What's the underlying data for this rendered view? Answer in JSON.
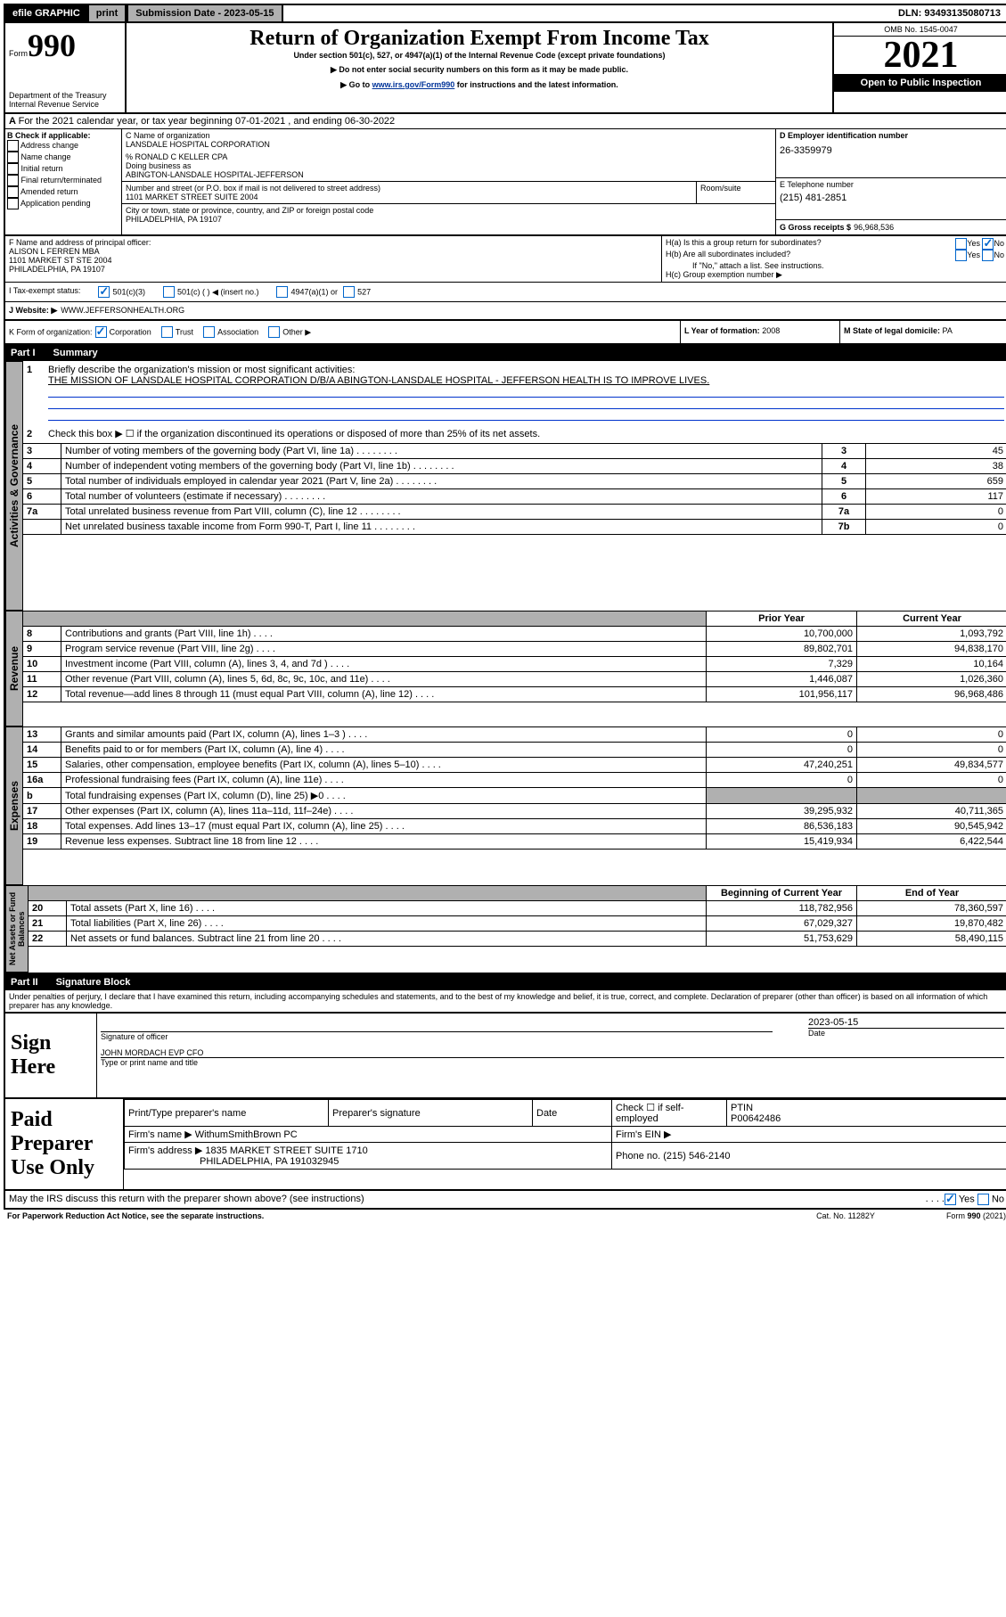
{
  "top": {
    "efile": "efile GRAPHIC",
    "print": "print",
    "sub_date_label": "Submission Date - 2023-05-15",
    "dln": "DLN: 93493135080713"
  },
  "header": {
    "form_prefix": "Form",
    "form_number": "990",
    "title": "Return of Organization Exempt From Income Tax",
    "subtitle": "Under section 501(c), 527, or 4947(a)(1) of the Internal Revenue Code (except private foundations)",
    "note1": "▶ Do not enter social security numbers on this form as it may be made public.",
    "note2_prefix": "▶ Go to ",
    "note2_link": "www.irs.gov/Form990",
    "note2_suffix": " for instructions and the latest information.",
    "dept1": "Department of the Treasury",
    "dept2": "Internal Revenue Service",
    "omb": "OMB No. 1545-0047",
    "year": "2021",
    "open": "Open to Public Inspection"
  },
  "a_line": "For the 2021 calendar year, or tax year beginning 07-01-2021    , and ending 06-30-2022",
  "b": {
    "label": "B Check if applicable:",
    "addr": "Address change",
    "name": "Name change",
    "init": "Initial return",
    "final": "Final return/terminated",
    "amend": "Amended return",
    "app": "Application pending"
  },
  "c": {
    "name_label": "C Name of organization",
    "name": "LANSDALE HOSPITAL CORPORATION",
    "care_of": "% RONALD C KELLER CPA",
    "dba_label": "Doing business as",
    "dba": "ABINGTON-LANSDALE HOSPITAL-JEFFERSON",
    "street_label": "Number and street (or P.O. box if mail is not delivered to street address)",
    "room_label": "Room/suite",
    "street": "1101 MARKET STREET SUITE 2004",
    "city_label": "City or town, state or province, country, and ZIP or foreign postal code",
    "city": "PHILADELPHIA, PA  19107"
  },
  "d": {
    "label": "D Employer identification number",
    "value": "26-3359979"
  },
  "e": {
    "label": "E Telephone number",
    "value": "(215) 481-2851"
  },
  "g": {
    "label": "G Gross receipts $",
    "value": "96,968,536"
  },
  "f": {
    "label": "F  Name and address of principal officer:",
    "name": "ALISON L FERREN MBA",
    "addr1": "1101 MARKET ST STE 2004",
    "addr2": "PHILADELPHIA, PA  19107"
  },
  "h": {
    "a": "H(a)  Is this a group return for subordinates?",
    "b": "H(b)  Are all subordinates included?",
    "b_note": "If \"No,\" attach a list. See instructions.",
    "c": "H(c)  Group exemption number ▶",
    "yes": "Yes",
    "no": "No"
  },
  "i": {
    "label": "I   Tax-exempt status:",
    "c3": "501(c)(3)",
    "c": "501(c) (  ) ◀ (insert no.)",
    "a1": "4947(a)(1) or",
    "s527": "527"
  },
  "j": {
    "label": "J   Website: ▶",
    "value": "WWW.JEFFERSONHEALTH.ORG"
  },
  "k": {
    "label": "K Form of organization:",
    "corp": "Corporation",
    "trust": "Trust",
    "assoc": "Association",
    "other": "Other ▶"
  },
  "l": {
    "label": "L Year of formation:",
    "value": "2008"
  },
  "m": {
    "label": "M State of legal domicile:",
    "value": "PA"
  },
  "part1": {
    "label": "Part I",
    "title": "Summary",
    "q1_label": "1",
    "q1": "Briefly describe the organization's mission or most significant activities:",
    "q1_text": "THE MISSION OF LANSDALE HOSPITAL CORPORATION D/B/A ABINGTON-LANSDALE HOSPITAL - JEFFERSON HEALTH IS TO IMPROVE LIVES.",
    "q2_label": "2",
    "q2": "Check this box ▶ ☐ if the organization discontinued its operations or disposed of more than 25% of its net assets.",
    "sect_ag": "Activities & Governance",
    "sect_rev": "Revenue",
    "sect_exp": "Expenses",
    "sect_na": "Net Assets or Fund Balances",
    "rows_ag": [
      {
        "n": "3",
        "t": "Number of voting members of the governing body (Part VI, line 1a)",
        "box": "3",
        "v": "45"
      },
      {
        "n": "4",
        "t": "Number of independent voting members of the governing body (Part VI, line 1b)",
        "box": "4",
        "v": "38"
      },
      {
        "n": "5",
        "t": "Total number of individuals employed in calendar year 2021 (Part V, line 2a)",
        "box": "5",
        "v": "659"
      },
      {
        "n": "6",
        "t": "Total number of volunteers (estimate if necessary)",
        "box": "6",
        "v": "117"
      },
      {
        "n": "7a",
        "t": "Total unrelated business revenue from Part VIII, column (C), line 12",
        "box": "7a",
        "v": "0"
      },
      {
        "n": "",
        "t": "Net unrelated business taxable income from Form 990-T, Part I, line 11",
        "box": "7b",
        "v": "0"
      }
    ],
    "prior": "Prior Year",
    "current": "Current Year",
    "rows_rev": [
      {
        "n": "8",
        "t": "Contributions and grants (Part VIII, line 1h)",
        "p": "10,700,000",
        "c": "1,093,792"
      },
      {
        "n": "9",
        "t": "Program service revenue (Part VIII, line 2g)",
        "p": "89,802,701",
        "c": "94,838,170"
      },
      {
        "n": "10",
        "t": "Investment income (Part VIII, column (A), lines 3, 4, and 7d )",
        "p": "7,329",
        "c": "10,164"
      },
      {
        "n": "11",
        "t": "Other revenue (Part VIII, column (A), lines 5, 6d, 8c, 9c, 10c, and 11e)",
        "p": "1,446,087",
        "c": "1,026,360"
      },
      {
        "n": "12",
        "t": "Total revenue—add lines 8 through 11 (must equal Part VIII, column (A), line 12)",
        "p": "101,956,117",
        "c": "96,968,486"
      }
    ],
    "rows_exp": [
      {
        "n": "13",
        "t": "Grants and similar amounts paid (Part IX, column (A), lines 1–3 )",
        "p": "0",
        "c": "0"
      },
      {
        "n": "14",
        "t": "Benefits paid to or for members (Part IX, column (A), line 4)",
        "p": "0",
        "c": "0"
      },
      {
        "n": "15",
        "t": "Salaries, other compensation, employee benefits (Part IX, column (A), lines 5–10)",
        "p": "47,240,251",
        "c": "49,834,577"
      },
      {
        "n": "16a",
        "t": "Professional fundraising fees (Part IX, column (A), line 11e)",
        "p": "0",
        "c": "0"
      },
      {
        "n": "b",
        "t": "Total fundraising expenses (Part IX, column (D), line 25) ▶0",
        "p": "grey",
        "c": "grey"
      },
      {
        "n": "17",
        "t": "Other expenses (Part IX, column (A), lines 11a–11d, 11f–24e)",
        "p": "39,295,932",
        "c": "40,711,365"
      },
      {
        "n": "18",
        "t": "Total expenses. Add lines 13–17 (must equal Part IX, column (A), line 25)",
        "p": "86,536,183",
        "c": "90,545,942"
      },
      {
        "n": "19",
        "t": "Revenue less expenses. Subtract line 18 from line 12",
        "p": "15,419,934",
        "c": "6,422,544"
      }
    ],
    "begin": "Beginning of Current Year",
    "end": "End of Year",
    "rows_na": [
      {
        "n": "20",
        "t": "Total assets (Part X, line 16)",
        "p": "118,782,956",
        "c": "78,360,597"
      },
      {
        "n": "21",
        "t": "Total liabilities (Part X, line 26)",
        "p": "67,029,327",
        "c": "19,870,482"
      },
      {
        "n": "22",
        "t": "Net assets or fund balances. Subtract line 21 from line 20",
        "p": "51,753,629",
        "c": "58,490,115"
      }
    ]
  },
  "part2": {
    "label": "Part II",
    "title": "Signature Block",
    "decl": "Under penalties of perjury, I declare that I have examined this return, including accompanying schedules and statements, and to the best of my knowledge and belief, it is true, correct, and complete. Declaration of preparer (other than officer) is based on all information of which preparer has any knowledge.",
    "sign_here": "Sign Here",
    "sig_officer": "Signature of officer",
    "date_label": "Date",
    "sig_date": "2023-05-15",
    "officer_name": "JOHN MORDACH  EVP CFO",
    "type_name": "Type or print name and title",
    "paid": "Paid Preparer Use Only",
    "prep_name_label": "Print/Type preparer's name",
    "prep_sig_label": "Preparer's signature",
    "check_if": "Check ☐ if self-employed",
    "ptin_label": "PTIN",
    "ptin": "P00642486",
    "firm_name_label": "Firm's name    ▶",
    "firm_name": "WithumSmithBrown PC",
    "firm_ein_label": "Firm's EIN ▶",
    "firm_addr_label": "Firm's address ▶",
    "firm_addr1": "1835 MARKET STREET SUITE 1710",
    "firm_addr2": "PHILADELPHIA, PA  191032945",
    "phone_label": "Phone no.",
    "phone": "(215) 546-2140",
    "discuss": "May the IRS discuss this return with the preparer shown above? (see instructions)",
    "paperwork": "For Paperwork Reduction Act Notice, see the separate instructions.",
    "cat": "Cat. No. 11282Y",
    "form_foot": "Form 990 (2021)"
  }
}
